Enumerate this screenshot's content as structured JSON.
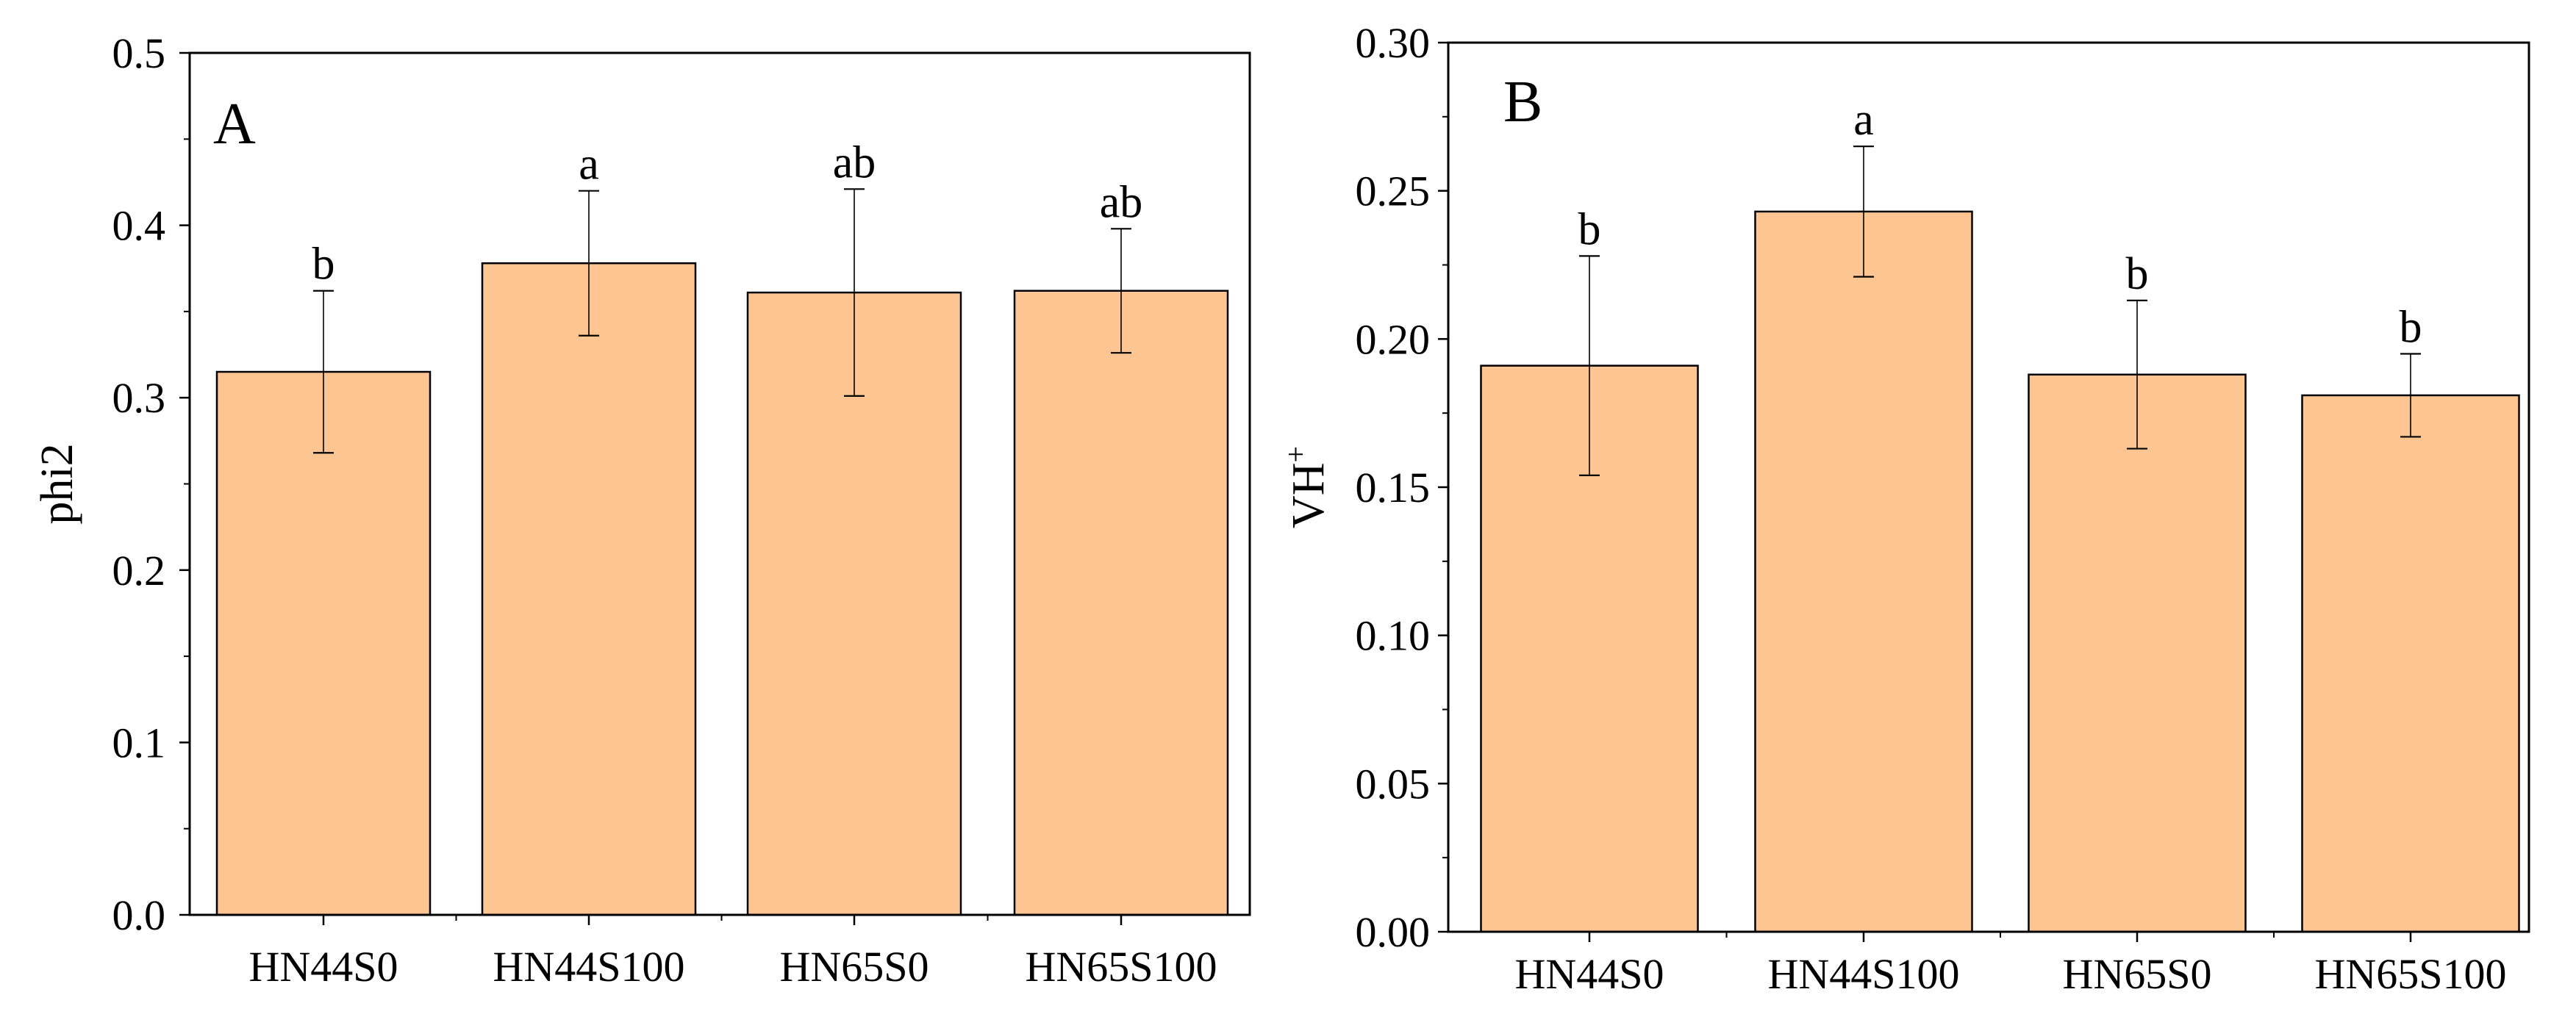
{
  "colors": {
    "bar_fill": "#FDC591",
    "bar_stroke": "#000000",
    "axis": "#000000",
    "error_bar": "#000000",
    "background": "#FFFFFF"
  },
  "chart_data": [
    {
      "type": "bar",
      "panel_label": "A",
      "title": "",
      "xlabel": "",
      "ylabel": "phi2",
      "ylabel_superscript": "",
      "categories": [
        "HN44S0",
        "HN44S100",
        "HN65S0",
        "HN65S100"
      ],
      "series": [
        {
          "name": "phi2",
          "values": [
            0.315,
            0.378,
            0.361,
            0.362
          ],
          "errors": [
            0.047,
            0.042,
            0.06,
            0.036
          ],
          "significance": [
            "b",
            "a",
            "ab",
            "ab"
          ]
        }
      ],
      "ylim": [
        0.0,
        0.5
      ],
      "yticks": [
        0.0,
        0.1,
        0.2,
        0.3,
        0.4,
        0.5
      ],
      "ytick_labels": [
        "0.0",
        "0.1",
        "0.2",
        "0.3",
        "0.4",
        "0.5"
      ],
      "grid": false,
      "legend": "none"
    },
    {
      "type": "bar",
      "panel_label": "B",
      "title": "",
      "xlabel": "",
      "ylabel": "VH",
      "ylabel_superscript": "+",
      "categories": [
        "HN44S0",
        "HN44S100",
        "HN65S0",
        "HN65S100"
      ],
      "series": [
        {
          "name": "VH+",
          "values": [
            0.191,
            0.243,
            0.188,
            0.181
          ],
          "errors": [
            0.037,
            0.022,
            0.025,
            0.014
          ],
          "significance": [
            "b",
            "a",
            "b",
            "b"
          ]
        }
      ],
      "ylim": [
        0.0,
        0.3
      ],
      "yticks": [
        0.0,
        0.05,
        0.1,
        0.15,
        0.2,
        0.25,
        0.3
      ],
      "ytick_labels": [
        "0.00",
        "0.05",
        "0.10",
        "0.15",
        "0.20",
        "0.25",
        "0.30"
      ],
      "grid": false,
      "legend": "none"
    }
  ]
}
